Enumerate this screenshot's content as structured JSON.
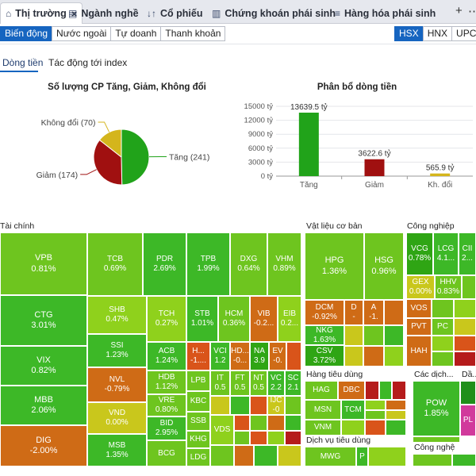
{
  "tabs": [
    {
      "label": "Thị trường",
      "icon": "home-icon"
    },
    {
      "label": "Ngành nghề",
      "icon": "sector-icon"
    },
    {
      "label": "Cổ phiếu",
      "icon": "sort-icon"
    },
    {
      "label": "Chứng khoán phái sinh",
      "icon": "chart-icon"
    },
    {
      "label": "Hàng hóa phái sinh",
      "icon": "list-icon"
    }
  ],
  "tab_close": "×",
  "toolbar": {
    "add": "+",
    "more": "⋯"
  },
  "filters": [
    "Biến động",
    "Nước ngoài",
    "Tự doanh",
    "Thanh khoản"
  ],
  "exchanges": [
    "HSX",
    "HNX",
    "UPCOM"
  ],
  "subtabs": [
    "Dòng tiền",
    "Tác động tới index"
  ],
  "pie_title": "Số lượng CP Tăng, Giảm, Không đổi",
  "bar_title": "Phân bổ dòng tiền",
  "colors": {
    "up": "#21a31a",
    "down": "#a01010",
    "flat": "#d4b51c",
    "accent": "#1665c0"
  },
  "chart_data": [
    {
      "type": "pie",
      "title": "Số lượng CP Tăng, Giảm, Không đổi",
      "slices": [
        {
          "label": "Tăng (241)",
          "value": 241
        },
        {
          "label": "Giảm (174)",
          "value": 174
        },
        {
          "label": "Không đổi (70)",
          "value": 70
        }
      ]
    },
    {
      "type": "bar",
      "title": "Phân bổ dòng tiền",
      "categories": [
        "Tăng",
        "Giảm",
        "Kh. đổi"
      ],
      "values": [
        13639.5,
        3622.6,
        565.9
      ],
      "value_labels": [
        "13639.5 tỷ",
        "3622.6 tỷ",
        "565.9 tỷ"
      ],
      "ylim": [
        0,
        15000
      ],
      "yticks": [
        0,
        3000,
        6000,
        9000,
        12000,
        15000
      ],
      "ytick_labels": [
        "0 tỷ",
        "3000 tỷ",
        "6000 tỷ",
        "9000 tỷ",
        "12000 tỷ",
        "15000 tỷ"
      ],
      "grid": true
    }
  ],
  "sectors": [
    "Tài chính",
    "Vật liệu cơ bản",
    "Công nghiệp",
    "Hàng tiêu dùng",
    "Các dịch...",
    "Dịch vụ tiêu dùng",
    "Công nghệ",
    "Dầ..."
  ],
  "cells": [
    {
      "s": "VPB",
      "p": "0.81%"
    },
    {
      "s": "CTG",
      "p": "3.01%"
    },
    {
      "s": "VIX",
      "p": "0.82%"
    },
    {
      "s": "MBB",
      "p": "2.06%"
    },
    {
      "s": "DIG",
      "p": "-2.00%"
    },
    {
      "s": "TCB",
      "p": "0.69%"
    },
    {
      "s": "PDR",
      "p": "2.69%"
    },
    {
      "s": "TPB",
      "p": "1.99%"
    },
    {
      "s": "DXG",
      "p": "0.64%"
    },
    {
      "s": "VHM",
      "p": "0.89%"
    },
    {
      "s": "SHB",
      "p": "0.47%"
    },
    {
      "s": "SSI",
      "p": "1.23%"
    },
    {
      "s": "NVL",
      "p": "-0.79%"
    },
    {
      "s": "VND",
      "p": "0.00%"
    },
    {
      "s": "MSB",
      "p": "1.35%"
    },
    {
      "s": "TCH",
      "p": "0.27%"
    },
    {
      "s": "STB",
      "p": "1.01%"
    },
    {
      "s": "HCM",
      "p": "0.36%"
    },
    {
      "s": "VIB",
      "p": "-0.2..."
    },
    {
      "s": "EIB",
      "p": "0.2..."
    },
    {
      "s": "ACB",
      "p": "1.24%"
    },
    {
      "s": "HDB",
      "p": "1.12%"
    },
    {
      "s": "VRE",
      "p": "0.80%"
    },
    {
      "s": "BID",
      "p": "2.95%"
    },
    {
      "s": "BCG",
      "p": ""
    },
    {
      "s": "H...",
      "p": "-1...."
    },
    {
      "s": "VCI",
      "p": "1.2"
    },
    {
      "s": "HD...",
      "p": "-0..."
    },
    {
      "s": "NA",
      "p": "3.9"
    },
    {
      "s": "EV",
      "p": "-0."
    },
    {
      "s": "LPB",
      "p": ""
    },
    {
      "s": "KBC",
      "p": ""
    },
    {
      "s": "SSB",
      "p": ""
    },
    {
      "s": "KHG",
      "p": ""
    },
    {
      "s": "LDG",
      "p": ""
    },
    {
      "s": "IT",
      "p": "0.5"
    },
    {
      "s": "FT",
      "p": "0.5"
    },
    {
      "s": "NT",
      "p": "0.5"
    },
    {
      "s": "VC",
      "p": "2.2"
    },
    {
      "s": "SC",
      "p": "2.1"
    },
    {
      "s": "IJC",
      "p": "-0"
    },
    {
      "s": "VDS",
      "p": ""
    },
    {
      "s": "HPG",
      "p": "1.36%"
    },
    {
      "s": "HSG",
      "p": "0.96%"
    },
    {
      "s": "DCM",
      "p": "-0.92%"
    },
    {
      "s": "NKG",
      "p": "1.63%"
    },
    {
      "s": "CSV",
      "p": "3.72%"
    },
    {
      "s": "D",
      "p": "-"
    },
    {
      "s": "A",
      "p": "-1."
    },
    {
      "s": "VCG",
      "p": "0.78%"
    },
    {
      "s": "LCG",
      "p": "4.1..."
    },
    {
      "s": "CII",
      "p": "2..."
    },
    {
      "s": "GEX",
      "p": "0.00%"
    },
    {
      "s": "HHV",
      "p": "0.83%"
    },
    {
      "s": "VOS",
      "p": ""
    },
    {
      "s": "PVT",
      "p": ""
    },
    {
      "s": "PC",
      "p": ""
    },
    {
      "s": "HAH",
      "p": ""
    },
    {
      "s": "HAG",
      "p": ""
    },
    {
      "s": "DBC",
      "p": ""
    },
    {
      "s": "MSN",
      "p": ""
    },
    {
      "s": "TCM",
      "p": ""
    },
    {
      "s": "VNM",
      "p": ""
    },
    {
      "s": "POW",
      "p": "1.85%"
    },
    {
      "s": "PL",
      "p": ""
    },
    {
      "s": "MWG",
      "p": ""
    },
    {
      "s": "P",
      "p": ""
    }
  ]
}
